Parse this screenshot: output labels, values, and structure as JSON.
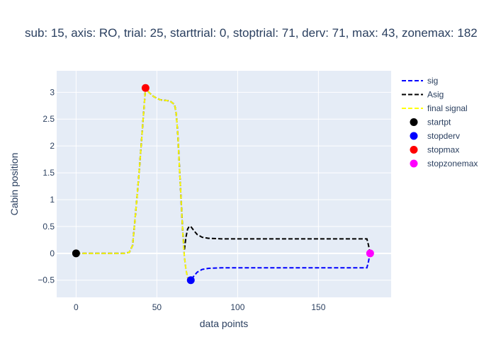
{
  "chart_data": {
    "type": "line",
    "title": "sub: 15, axis: RO, trial: 25, starttrial: 0, stoptrial: 71, derv: 71, max: 43, zonemax: 182",
    "xlabel": "data points",
    "ylabel": "Cabin position",
    "xlim": [
      -12,
      195
    ],
    "ylim": [
      -0.82,
      3.4
    ],
    "xticks": [
      0,
      50,
      100,
      150
    ],
    "yticks": [
      -0.5,
      0,
      0.5,
      1,
      1.5,
      2,
      2.5,
      3
    ],
    "yticklabels": [
      "−0.5",
      "0",
      "0.5",
      "1",
      "1.5",
      "2",
      "2.5",
      "3"
    ],
    "grid": true,
    "legend_position": "right",
    "series": [
      {
        "name": "sig",
        "style": "dash",
        "color": "#0000ff",
        "x": [
          0,
          10,
          20,
          30,
          33,
          35,
          37,
          39,
          41,
          43,
          45,
          48,
          52,
          55,
          58,
          61,
          62,
          63,
          64,
          65,
          66,
          67,
          68,
          69,
          70,
          71,
          73,
          75,
          78,
          82,
          90,
          100,
          120,
          140,
          160,
          170,
          180,
          181,
          182
        ],
        "y": [
          0,
          0,
          0,
          0,
          0.02,
          0.15,
          0.8,
          1.5,
          2.3,
          3.08,
          3.0,
          2.92,
          2.86,
          2.85,
          2.84,
          2.77,
          2.6,
          2.2,
          1.6,
          1.0,
          0.4,
          -0.05,
          -0.3,
          -0.45,
          -0.5,
          -0.5,
          -0.42,
          -0.35,
          -0.3,
          -0.28,
          -0.27,
          -0.27,
          -0.27,
          -0.27,
          -0.27,
          -0.27,
          -0.27,
          -0.15,
          0
        ]
      },
      {
        "name": "Asig",
        "style": "dash",
        "color": "#000000",
        "x": [
          0,
          10,
          20,
          30,
          33,
          35,
          37,
          39,
          41,
          43,
          45,
          48,
          52,
          55,
          58,
          61,
          62,
          63,
          64,
          65,
          66,
          67,
          68,
          69,
          70,
          71,
          73,
          75,
          78,
          82,
          90,
          100,
          120,
          140,
          160,
          170,
          180,
          181,
          182
        ],
        "y": [
          0,
          0,
          0,
          0,
          0.02,
          0.15,
          0.8,
          1.5,
          2.3,
          3.08,
          3.0,
          2.92,
          2.86,
          2.85,
          2.84,
          2.77,
          2.6,
          2.2,
          1.6,
          1.0,
          0.4,
          0.05,
          0.3,
          0.45,
          0.5,
          0.5,
          0.42,
          0.35,
          0.3,
          0.28,
          0.27,
          0.27,
          0.27,
          0.27,
          0.27,
          0.27,
          0.27,
          0.15,
          0
        ]
      },
      {
        "name": "final signal",
        "style": "dash",
        "color": "#ffff00",
        "x": [
          0,
          10,
          20,
          30,
          33,
          35,
          37,
          39,
          41,
          43,
          45,
          48,
          52,
          55,
          58,
          61,
          62,
          63,
          64,
          65,
          66,
          67,
          68,
          69,
          70,
          71
        ],
        "y": [
          0,
          0,
          0,
          0,
          0.02,
          0.15,
          0.8,
          1.5,
          2.3,
          3.08,
          3.0,
          2.92,
          2.86,
          2.85,
          2.84,
          2.77,
          2.6,
          2.2,
          1.6,
          1.0,
          0.4,
          -0.05,
          -0.3,
          -0.45,
          -0.5,
          -0.5
        ]
      },
      {
        "name": "startpt",
        "style": "marker",
        "color": "#000000",
        "x": [
          0
        ],
        "y": [
          0
        ]
      },
      {
        "name": "stopderv",
        "style": "marker",
        "color": "#0000ff",
        "x": [
          71
        ],
        "y": [
          -0.5
        ]
      },
      {
        "name": "stopmax",
        "style": "marker",
        "color": "#ff0000",
        "x": [
          43
        ],
        "y": [
          3.08
        ]
      },
      {
        "name": "stopzonemax",
        "style": "marker",
        "color": "#ff00ff",
        "x": [
          182
        ],
        "y": [
          0
        ]
      }
    ]
  }
}
